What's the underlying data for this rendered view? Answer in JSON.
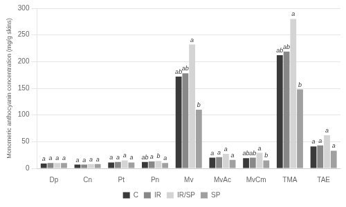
{
  "chart_data": {
    "type": "bar",
    "y_label": "Monomeric anthocyanin concentration (mg/g skins)",
    "categories": [
      "Dp",
      "Cn",
      "Pt",
      "Pn",
      "Mv",
      "MvAc",
      "MvCm",
      "TMA",
      "TAE"
    ],
    "series": [
      {
        "name": "C",
        "color": "#3a3a3a",
        "values": [
          9,
          7,
          11,
          12,
          172,
          20,
          19,
          212,
          41
        ],
        "annotations": [
          "a",
          "a",
          "a",
          "ab",
          "ab",
          "a",
          "ab",
          "ab",
          "a"
        ]
      },
      {
        "name": "IR",
        "color": "#888888",
        "values": [
          10,
          7,
          12,
          13,
          178,
          21,
          20,
          219,
          43
        ],
        "annotations": [
          "a",
          "a",
          "a",
          "a",
          "ab",
          "a",
          "ab",
          "ab",
          "a"
        ]
      },
      {
        "name": "IR/SP",
        "color": "#d4d4d4",
        "values": [
          10,
          8,
          15,
          14,
          232,
          27,
          29,
          280,
          62
        ],
        "annotations": [
          "a",
          "a",
          "a",
          "b",
          "a",
          "a",
          "a",
          "a",
          "a"
        ]
      },
      {
        "name": "SP",
        "color": "#a0a0a0",
        "values": [
          10,
          8,
          11,
          10,
          110,
          16,
          15,
          148,
          33
        ],
        "annotations": [
          "a",
          "a",
          "a",
          "a",
          "b",
          "a",
          "b",
          "b",
          "a"
        ]
      }
    ],
    "ylim": [
      0,
      300
    ],
    "yticks": [
      0,
      50,
      100,
      150,
      200,
      250,
      300
    ],
    "grid": true,
    "legend": "bottom"
  }
}
